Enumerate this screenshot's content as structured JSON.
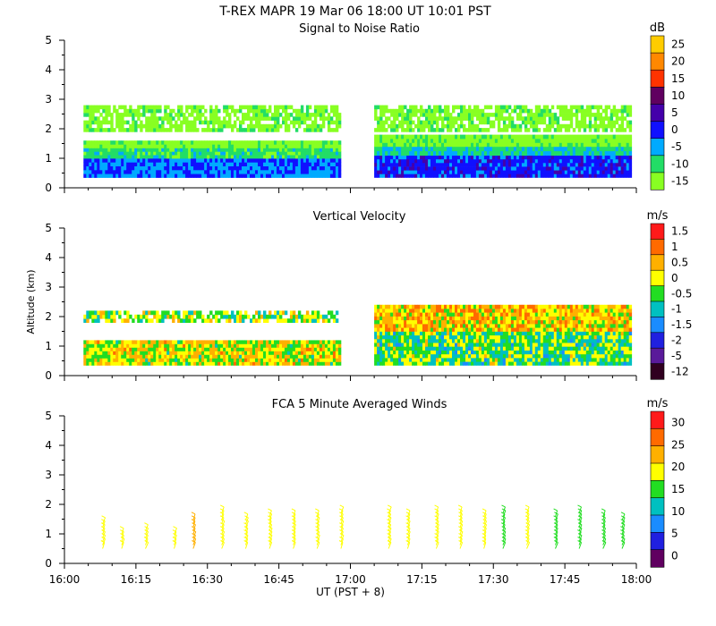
{
  "header": {
    "title": "T-REX   MAPR 19 Mar 06   18:00 UT   10:01   PST"
  },
  "chart_data": [
    {
      "type": "heatmap",
      "title": "Signal to Noise Ratio",
      "ylabel": "",
      "ylim": [
        0,
        5
      ],
      "yticks": [
        "0",
        "1",
        "2",
        "3",
        "4",
        "5"
      ],
      "colorbar": {
        "unit": "dB",
        "labels": [
          "25",
          "20",
          "15",
          "10",
          "5",
          "0",
          "-5",
          "-10",
          "-15"
        ],
        "colors": [
          "#ffcc00",
          "#ff8800",
          "#ff3300",
          "#600060",
          "#4400aa",
          "#1010ff",
          "#00aaff",
          "#22dd66",
          "#88ff22"
        ]
      },
      "segments": [
        {
          "x_start": "16:04",
          "x_end": "16:58",
          "bands": [
            {
              "from": 0.35,
              "to": 1.0,
              "value": -3
            },
            {
              "from": 1.0,
              "to": 1.35,
              "value": -10
            },
            {
              "from": 1.35,
              "to": 1.6,
              "value": -15
            },
            {
              "from": 1.9,
              "to": 2.8,
              "value": -15
            }
          ]
        },
        {
          "x_start": "17:05",
          "x_end": "17:59",
          "bands": [
            {
              "from": 0.35,
              "to": 1.1,
              "value": 0
            },
            {
              "from": 1.1,
              "to": 1.4,
              "value": -8
            },
            {
              "from": 1.4,
              "to": 1.8,
              "value": -15
            },
            {
              "from": 1.9,
              "to": 2.8,
              "value": -15
            }
          ]
        }
      ]
    },
    {
      "type": "heatmap",
      "title": "Vertical Velocity",
      "ylabel": "Altitude (km)",
      "ylim": [
        0,
        5
      ],
      "yticks": [
        "0",
        "1",
        "2",
        "3",
        "4",
        "5"
      ],
      "colorbar": {
        "unit": "m/s",
        "labels": [
          "1.5",
          "1",
          "0.5",
          "0",
          "-0.5",
          "-1",
          "-1.5",
          "-2",
          "-5",
          "-12"
        ],
        "colors": [
          "#ff1a1a",
          "#ff6a00",
          "#ffb000",
          "#ffff00",
          "#22dd22",
          "#00c0c0",
          "#1a8cff",
          "#2020e0",
          "#5a1a9a",
          "#300020"
        ]
      },
      "segments": [
        {
          "x_start": "16:04",
          "x_end": "16:58",
          "bands": [
            {
              "from": 0.35,
              "to": 1.2,
              "value": 0
            },
            {
              "from": 1.8,
              "to": 2.2,
              "value": -0.3
            }
          ]
        },
        {
          "x_start": "17:05",
          "x_end": "17:59",
          "bands": [
            {
              "from": 0.35,
              "to": 1.5,
              "value": -0.5
            },
            {
              "from": 1.5,
              "to": 2.4,
              "value": 0.3
            }
          ]
        }
      ]
    },
    {
      "type": "wind_barbs",
      "title": "FCA 5 Minute Averaged Winds",
      "xlabel": "UT  (PST + 8)",
      "ylim": [
        0,
        5
      ],
      "yticks": [
        "0",
        "1",
        "2",
        "3",
        "4",
        "5"
      ],
      "xticks": [
        "16:00",
        "16:15",
        "16:30",
        "16:45",
        "17:00",
        "17:15",
        "17:30",
        "17:45",
        "18:00"
      ],
      "colorbar": {
        "unit": "m/s",
        "labels": [
          "30",
          "25",
          "20",
          "15",
          "10",
          "5",
          "0"
        ],
        "colors": [
          "#ff1a1a",
          "#ff6a00",
          "#ffb000",
          "#ffff00",
          "#22dd22",
          "#00c0c0",
          "#1a8cff",
          "#2020e0",
          "#600060"
        ]
      },
      "profiles": [
        {
          "time": "16:08",
          "top_km": 1.4,
          "speed": 15
        },
        {
          "time": "16:12",
          "top_km": 1.0,
          "speed": 14
        },
        {
          "time": "16:17",
          "top_km": 1.1,
          "speed": 15
        },
        {
          "time": "16:23",
          "top_km": 1.0,
          "speed": 13
        },
        {
          "time": "16:27",
          "top_km": 1.5,
          "speed": 18
        },
        {
          "time": "16:33",
          "top_km": 1.7,
          "speed": 17
        },
        {
          "time": "16:38",
          "top_km": 1.5,
          "speed": 15
        },
        {
          "time": "16:43",
          "top_km": 1.6,
          "speed": 16
        },
        {
          "time": "16:48",
          "top_km": 1.6,
          "speed": 16
        },
        {
          "time": "16:53",
          "top_km": 1.6,
          "speed": 17
        },
        {
          "time": "16:58",
          "top_km": 1.7,
          "speed": 17
        },
        {
          "time": "17:08",
          "top_km": 1.8,
          "speed": 14
        },
        {
          "time": "17:12",
          "top_km": 1.6,
          "speed": 13
        },
        {
          "time": "17:18",
          "top_km": 1.7,
          "speed": 15
        },
        {
          "time": "17:23",
          "top_km": 1.7,
          "speed": 14
        },
        {
          "time": "17:28",
          "top_km": 1.6,
          "speed": 14
        },
        {
          "time": "17:32",
          "top_km": 1.8,
          "speed": 12
        },
        {
          "time": "17:37",
          "top_km": 1.7,
          "speed": 13
        },
        {
          "time": "17:43",
          "top_km": 1.6,
          "speed": 12
        },
        {
          "time": "17:48",
          "top_km": 1.7,
          "speed": 11
        },
        {
          "time": "17:53",
          "top_km": 1.6,
          "speed": 10
        },
        {
          "time": "17:57",
          "top_km": 1.5,
          "speed": 9
        }
      ]
    }
  ]
}
